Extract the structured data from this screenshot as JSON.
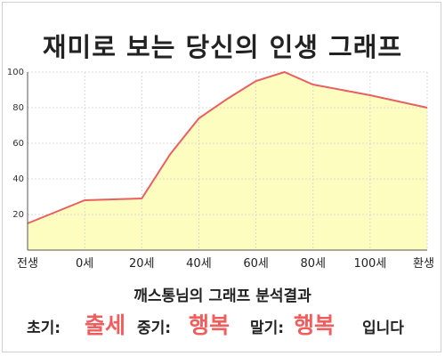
{
  "chart_data": {
    "type": "area",
    "title": "재미로 보는 당신의 인생 그래프",
    "x_tick_labels": [
      "전생",
      "0세",
      "20세",
      "40세",
      "60세",
      "80세",
      "100세",
      "환생"
    ],
    "y_ticks": [
      20,
      40,
      60,
      80,
      100
    ],
    "ylim": [
      0,
      100
    ],
    "grid": true,
    "line_color": "#e86060",
    "fill_color": "#fefdc0",
    "series": [
      {
        "x": [
          "전생",
          "0세",
          "10세",
          "20세",
          "30세",
          "40세",
          "50세",
          "60세",
          "70세",
          "80세",
          "90세",
          "100세",
          "환생"
        ],
        "values": [
          15,
          28,
          28.5,
          29,
          54,
          74,
          85,
          95,
          100,
          93,
          90,
          87,
          80
        ]
      }
    ]
  },
  "result": {
    "heading": "깨스통님의 그래프 분석결과",
    "early_label": "초기:",
    "early_value": "출세",
    "mid_label": "중기:",
    "mid_value": "행복",
    "late_label": "말기:",
    "late_value": "행복",
    "ending": "입니다"
  }
}
